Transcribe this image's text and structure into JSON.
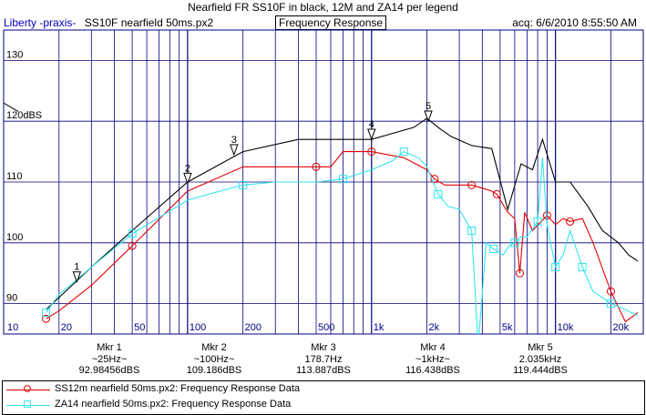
{
  "title": "Nearfield FR SS10F in black, 12M and ZA14 per legend",
  "header": {
    "left_brand": "Liberty -praxis-",
    "left_file": "SS10F nearfield 50ms.px2",
    "center": "Frequency Response",
    "right": "acq: 6/6/2010 8:55:50 AM"
  },
  "colors": {
    "black_trace": "#000000",
    "red_trace": "#e00000",
    "cyan_trace": "#33e6ee",
    "grid": "#000080"
  },
  "chart_data": {
    "type": "line",
    "x_scale": "log",
    "xlim": [
      10,
      30000
    ],
    "ylim": [
      85,
      135
    ],
    "x_ticks": [
      "10",
      "20",
      "50",
      "100",
      "200",
      "500",
      "1k",
      "2k",
      "5k",
      "10k",
      "20k"
    ],
    "x_tick_values": [
      10,
      20,
      50,
      100,
      200,
      500,
      1000,
      2000,
      5000,
      10000,
      20000
    ],
    "y_ticks": [
      "90",
      "100",
      "110",
      "120dBS",
      "130"
    ],
    "y_tick_values": [
      90,
      100,
      110,
      120,
      130
    ],
    "grid": true,
    "series": [
      {
        "name": "SS10F nearfield 50ms.px2",
        "color": "#000000",
        "marker": "none",
        "x": [
          17,
          20,
          30,
          50,
          100,
          200,
          400,
          800,
          1000,
          1300,
          1700,
          2000,
          2300,
          2700,
          3500,
          4500,
          5500,
          6500,
          7500,
          8500,
          10000,
          12000,
          15000,
          18000,
          22000,
          25000,
          28000
        ],
        "y": [
          89,
          91,
          96,
          102,
          110,
          115,
          117,
          117,
          117,
          118,
          119,
          120.5,
          119,
          117.5,
          116,
          115.5,
          105.5,
          113,
          112,
          117,
          110,
          110,
          106,
          102,
          100,
          98,
          97
        ]
      },
      {
        "name": "SS12m nearfield 50ms.px2:  Frequency Response Data",
        "color": "#e00000",
        "marker": "circle",
        "x": [
          17,
          20,
          30,
          50,
          100,
          200,
          500,
          600,
          700,
          1000,
          1500,
          2000,
          2200,
          2500,
          3000,
          3500,
          4000,
          4500,
          4800,
          5500,
          6000,
          6400,
          6800,
          7500,
          9000,
          10000,
          11000,
          12000,
          14000,
          16000,
          20000,
          24000,
          28000
        ],
        "y": [
          87.5,
          88.8,
          93,
          99.5,
          108.5,
          112.5,
          112.5,
          112.5,
          115,
          115,
          114,
          112,
          110.5,
          109.5,
          109.5,
          109.5,
          109,
          108.5,
          108,
          105,
          104,
          95,
          105,
          102,
          104.5,
          103,
          104,
          103.5,
          104,
          100,
          92,
          87,
          88.5
        ]
      },
      {
        "name": "ZA14 nearfield 50ms.px2:  Frequency Response Data",
        "color": "#33e6ee",
        "marker": "square",
        "x": [
          17,
          20,
          30,
          50,
          100,
          130,
          200,
          300,
          500,
          700,
          1000,
          1300,
          1500,
          1800,
          2000,
          2300,
          2600,
          3000,
          3500,
          3800,
          4200,
          4600,
          5200,
          5600,
          6000,
          6500,
          7000,
          8000,
          8500,
          9000,
          10000,
          11000,
          12000,
          14000,
          16000,
          18000,
          20000,
          24000,
          28000
        ],
        "y": [
          88.5,
          91.5,
          96,
          101.5,
          107,
          108,
          109.5,
          110,
          110,
          110.5,
          112,
          113.5,
          115,
          114,
          112.5,
          108,
          106,
          105.5,
          102,
          83,
          100,
          99,
          98,
          99.5,
          100,
          101,
          101,
          103.5,
          114,
          103,
          96,
          98,
          102,
          96,
          92,
          91,
          90,
          89,
          88
        ]
      }
    ],
    "markers": [
      {
        "label": "Mkr 1",
        "freq_label": "~25Hz~",
        "level": "92.98456dBS",
        "x": 25,
        "y": 92.98,
        "num": "1"
      },
      {
        "label": "Mkr 2",
        "freq_label": "~100Hz~",
        "level": "109.186dBS",
        "x": 100,
        "y": 109.19,
        "num": "2"
      },
      {
        "label": "Mkr 3",
        "freq_label": "178.7Hz",
        "level": "113.887dBS",
        "x": 178.7,
        "y": 113.89,
        "num": "3"
      },
      {
        "label": "Mkr 4",
        "freq_label": "~1kHz~",
        "level": "116.438dBS",
        "x": 1000,
        "y": 116.44,
        "num": "4"
      },
      {
        "label": "Mkr 5",
        "freq_label": "2.035kHz",
        "level": "119.444dBS",
        "x": 2035,
        "y": 119.44,
        "num": "5"
      }
    ]
  },
  "legend": [
    {
      "label": "SS12m nearfield 50ms.px2:  Frequency Response Data",
      "color": "#e00000",
      "marker": "circle"
    },
    {
      "label": "ZA14 nearfield 50ms.px2:  Frequency Response Data",
      "color": "#33e6ee",
      "marker": "square"
    }
  ]
}
